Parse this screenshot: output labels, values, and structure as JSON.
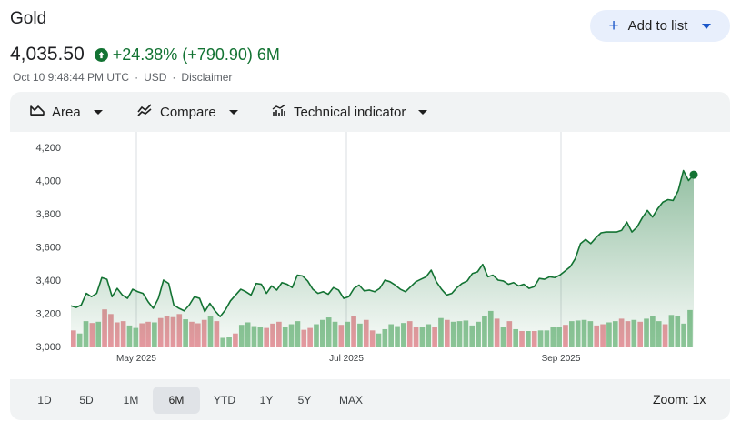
{
  "header": {
    "title": "Gold",
    "add_button_label": "Add to list",
    "price": "4,035.50",
    "change": "+24.38% (+790.90) 6M",
    "timestamp": "Oct 10 9:48:44 PM UTC",
    "currency": "USD",
    "disclaimer": "Disclaimer"
  },
  "toolbar": {
    "area_label": "Area",
    "compare_label": "Compare",
    "technical_label": "Technical indicator"
  },
  "ranges": [
    "1D",
    "5D",
    "1M",
    "6M",
    "YTD",
    "1Y",
    "5Y",
    "MAX"
  ],
  "active_range": "6M",
  "zoom_label": "Zoom: 1x",
  "colors": {
    "line": "#137333",
    "volume_up": "#8fc79a",
    "volume_down": "#ea9aa2",
    "accent": "#1a56c9"
  },
  "chart_data": {
    "type": "line",
    "y_ticks": [
      "4,200",
      "4,000",
      "3,800",
      "3,600",
      "3,400",
      "3,200",
      "3,000"
    ],
    "ylim": [
      3000,
      4200
    ],
    "x_ticks": [
      "May 2025",
      "Jul 2025",
      "Sep 2025"
    ],
    "series": [
      {
        "values": [
          3245,
          3235,
          3250,
          3320,
          3300,
          3320,
          3415,
          3405,
          3300,
          3350,
          3310,
          3290,
          3345,
          3330,
          3320,
          3270,
          3230,
          3290,
          3400,
          3380,
          3250,
          3230,
          3215,
          3250,
          3300,
          3290,
          3210,
          3260,
          3215,
          3180,
          3220,
          3275,
          3310,
          3345,
          3330,
          3310,
          3380,
          3375,
          3320,
          3365,
          3340,
          3385,
          3375,
          3355,
          3430,
          3425,
          3395,
          3345,
          3320,
          3330,
          3315,
          3355,
          3340,
          3290,
          3300,
          3350,
          3370,
          3335,
          3340,
          3330,
          3350,
          3400,
          3390,
          3370,
          3345,
          3330,
          3360,
          3390,
          3405,
          3420,
          3460,
          3390,
          3345,
          3310,
          3320,
          3355,
          3380,
          3395,
          3440,
          3450,
          3495,
          3420,
          3430,
          3400,
          3395,
          3375,
          3385,
          3365,
          3375,
          3350,
          3360,
          3410,
          3405,
          3420,
          3415,
          3430,
          3455,
          3480,
          3530,
          3620,
          3645,
          3620,
          3655,
          3685,
          3690,
          3690,
          3690,
          3700,
          3750,
          3690,
          3720,
          3775,
          3820,
          3780,
          3830,
          3870,
          3885,
          3880,
          3940,
          4060,
          4000,
          4035
        ]
      }
    ],
    "volume": [
      {
        "v": 0.52,
        "up": false
      },
      {
        "v": 0.42,
        "up": true
      },
      {
        "v": 0.82,
        "up": true
      },
      {
        "v": 0.76,
        "up": false
      },
      {
        "v": 0.8,
        "up": true
      },
      {
        "v": 1.2,
        "up": false
      },
      {
        "v": 1.05,
        "up": false
      },
      {
        "v": 0.78,
        "up": false
      },
      {
        "v": 0.82,
        "up": false
      },
      {
        "v": 0.68,
        "up": true
      },
      {
        "v": 0.6,
        "up": true
      },
      {
        "v": 0.75,
        "up": false
      },
      {
        "v": 0.8,
        "up": false
      },
      {
        "v": 0.78,
        "up": true
      },
      {
        "v": 0.92,
        "up": false
      },
      {
        "v": 1.0,
        "up": false
      },
      {
        "v": 0.95,
        "up": false
      },
      {
        "v": 1.05,
        "up": false
      },
      {
        "v": 0.88,
        "up": true
      },
      {
        "v": 0.8,
        "up": false
      },
      {
        "v": 0.75,
        "up": false
      },
      {
        "v": 0.86,
        "up": false
      },
      {
        "v": 0.98,
        "up": true
      },
      {
        "v": 0.82,
        "up": false
      },
      {
        "v": 0.28,
        "up": true
      },
      {
        "v": 0.3,
        "up": true
      },
      {
        "v": 0.42,
        "up": false
      },
      {
        "v": 0.7,
        "up": true
      },
      {
        "v": 0.78,
        "up": true
      },
      {
        "v": 0.66,
        "up": true
      },
      {
        "v": 0.64,
        "up": true
      },
      {
        "v": 0.6,
        "up": false
      },
      {
        "v": 0.74,
        "up": false
      },
      {
        "v": 0.8,
        "up": false
      },
      {
        "v": 0.64,
        "up": true
      },
      {
        "v": 0.72,
        "up": true
      },
      {
        "v": 0.82,
        "up": true
      },
      {
        "v": 0.54,
        "up": false
      },
      {
        "v": 0.6,
        "up": false
      },
      {
        "v": 0.72,
        "up": true
      },
      {
        "v": 0.86,
        "up": true
      },
      {
        "v": 0.94,
        "up": true
      },
      {
        "v": 0.8,
        "up": true
      },
      {
        "v": 0.7,
        "up": false
      },
      {
        "v": 0.8,
        "up": true
      },
      {
        "v": 0.98,
        "up": false
      },
      {
        "v": 0.74,
        "up": true
      },
      {
        "v": 0.86,
        "up": false
      },
      {
        "v": 0.52,
        "up": false
      },
      {
        "v": 0.42,
        "up": true
      },
      {
        "v": 0.56,
        "up": true
      },
      {
        "v": 0.72,
        "up": true
      },
      {
        "v": 0.66,
        "up": true
      },
      {
        "v": 0.76,
        "up": true
      },
      {
        "v": 0.82,
        "up": false
      },
      {
        "v": 0.62,
        "up": false
      },
      {
        "v": 0.64,
        "up": true
      },
      {
        "v": 0.72,
        "up": true
      },
      {
        "v": 0.62,
        "up": false
      },
      {
        "v": 0.92,
        "up": true
      },
      {
        "v": 0.86,
        "up": false
      },
      {
        "v": 0.8,
        "up": true
      },
      {
        "v": 0.82,
        "up": true
      },
      {
        "v": 0.84,
        "up": true
      },
      {
        "v": 0.68,
        "up": true
      },
      {
        "v": 0.8,
        "up": true
      },
      {
        "v": 0.98,
        "up": true
      },
      {
        "v": 1.15,
        "up": true
      },
      {
        "v": 0.9,
        "up": false
      },
      {
        "v": 0.64,
        "up": true
      },
      {
        "v": 0.82,
        "up": false
      },
      {
        "v": 0.56,
        "up": true
      },
      {
        "v": 0.5,
        "up": false
      },
      {
        "v": 0.5,
        "up": true
      },
      {
        "v": 0.5,
        "up": false
      },
      {
        "v": 0.52,
        "up": true
      },
      {
        "v": 0.52,
        "up": true
      },
      {
        "v": 0.64,
        "up": true
      },
      {
        "v": 0.62,
        "up": true
      },
      {
        "v": 0.7,
        "up": false
      },
      {
        "v": 0.82,
        "up": true
      },
      {
        "v": 0.84,
        "up": true
      },
      {
        "v": 0.86,
        "up": true
      },
      {
        "v": 0.82,
        "up": true
      },
      {
        "v": 0.68,
        "up": false
      },
      {
        "v": 0.72,
        "up": false
      },
      {
        "v": 0.78,
        "up": true
      },
      {
        "v": 0.82,
        "up": true
      },
      {
        "v": 0.9,
        "up": false
      },
      {
        "v": 0.82,
        "up": false
      },
      {
        "v": 0.86,
        "up": true
      },
      {
        "v": 0.8,
        "up": false
      },
      {
        "v": 0.9,
        "up": true
      },
      {
        "v": 1.0,
        "up": true
      },
      {
        "v": 0.82,
        "up": true
      },
      {
        "v": 0.72,
        "up": false
      },
      {
        "v": 1.02,
        "up": true
      },
      {
        "v": 1.0,
        "up": true
      },
      {
        "v": 0.74,
        "up": true
      },
      {
        "v": 1.18,
        "up": true
      }
    ]
  }
}
